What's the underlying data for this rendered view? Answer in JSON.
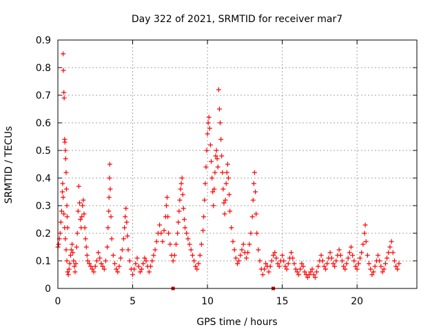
{
  "chart_data": {
    "type": "scatter",
    "title": "Day 322 of 2021, SRMTID for receiver mar7",
    "xlabel": "GPS time / hours",
    "ylabel": "SRMTID / TECUs",
    "xlim": [
      0,
      24
    ],
    "ylim": [
      0,
      0.9
    ],
    "x_ticks": [
      0,
      5,
      10,
      15,
      20
    ],
    "x_tick_labels": [
      "0",
      "5",
      "10",
      "15",
      "20"
    ],
    "y_ticks": [
      0,
      0.1,
      0.2,
      0.3,
      0.4,
      0.5,
      0.6,
      0.7,
      0.8,
      0.9
    ],
    "y_tick_labels": [
      "0",
      "0.1",
      "0.2",
      "0.3",
      "0.4",
      "0.5",
      "0.6",
      "0.7",
      "0.8",
      "0.9"
    ],
    "grid": true,
    "legend": "none",
    "marker": "plus",
    "colors": {
      "series": "#ff0000",
      "axis_markers": "#cc0000",
      "grid": "#a0a0a0"
    },
    "axis_markers_x": [
      7.7,
      14.4
    ],
    "series": [
      {
        "points": [
          [
            0.0,
            0.15
          ],
          [
            0.05,
            0.16
          ],
          [
            0.1,
            0.18
          ],
          [
            0.15,
            0.2
          ],
          [
            0.2,
            0.24
          ],
          [
            0.25,
            0.28
          ],
          [
            0.3,
            0.35
          ],
          [
            0.32,
            0.38
          ],
          [
            0.35,
            0.85
          ],
          [
            0.37,
            0.79
          ],
          [
            0.4,
            0.71
          ],
          [
            0.42,
            0.69
          ],
          [
            0.45,
            0.54
          ],
          [
            0.47,
            0.53
          ],
          [
            0.5,
            0.5
          ],
          [
            0.52,
            0.47
          ],
          [
            0.55,
            0.42
          ],
          [
            0.57,
            0.36
          ],
          [
            0.6,
            0.3
          ],
          [
            0.62,
            0.26
          ],
          [
            0.65,
            0.22
          ],
          [
            0.35,
            0.33
          ],
          [
            0.4,
            0.27
          ],
          [
            0.45,
            0.22
          ],
          [
            0.5,
            0.18
          ],
          [
            0.55,
            0.14
          ],
          [
            0.6,
            0.1
          ],
          [
            0.65,
            0.06
          ],
          [
            0.7,
            0.05
          ],
          [
            0.75,
            0.07
          ],
          [
            0.8,
            0.09
          ],
          [
            0.85,
            0.12
          ],
          [
            0.9,
            0.14
          ],
          [
            0.95,
            0.16
          ],
          [
            1.0,
            0.13
          ],
          [
            1.05,
            0.1
          ],
          [
            1.1,
            0.08
          ],
          [
            1.15,
            0.06
          ],
          [
            1.2,
            0.09
          ],
          [
            1.25,
            0.15
          ],
          [
            1.3,
            0.2
          ],
          [
            1.35,
            0.28
          ],
          [
            1.4,
            0.37
          ],
          [
            1.45,
            0.31
          ],
          [
            1.5,
            0.25
          ],
          [
            1.55,
            0.22
          ],
          [
            1.6,
            0.26
          ],
          [
            1.65,
            0.3
          ],
          [
            1.7,
            0.32
          ],
          [
            1.75,
            0.27
          ],
          [
            1.8,
            0.22
          ],
          [
            1.85,
            0.18
          ],
          [
            1.9,
            0.15
          ],
          [
            1.95,
            0.12
          ],
          [
            2.0,
            0.1
          ],
          [
            2.1,
            0.09
          ],
          [
            2.2,
            0.08
          ],
          [
            2.3,
            0.07
          ],
          [
            2.4,
            0.06
          ],
          [
            2.5,
            0.08
          ],
          [
            2.6,
            0.1
          ],
          [
            2.7,
            0.13
          ],
          [
            2.8,
            0.11
          ],
          [
            2.9,
            0.09
          ],
          [
            3.0,
            0.08
          ],
          [
            3.1,
            0.07
          ],
          [
            3.2,
            0.1
          ],
          [
            3.3,
            0.15
          ],
          [
            3.35,
            0.22
          ],
          [
            3.4,
            0.28
          ],
          [
            3.42,
            0.33
          ],
          [
            3.45,
            0.4
          ],
          [
            3.47,
            0.45
          ],
          [
            3.5,
            0.36
          ],
          [
            3.55,
            0.26
          ],
          [
            3.6,
            0.18
          ],
          [
            3.7,
            0.12
          ],
          [
            3.8,
            0.09
          ],
          [
            3.9,
            0.07
          ],
          [
            4.0,
            0.06
          ],
          [
            4.1,
            0.08
          ],
          [
            4.2,
            0.11
          ],
          [
            4.3,
            0.14
          ],
          [
            4.4,
            0.18
          ],
          [
            4.45,
            0.22
          ],
          [
            4.5,
            0.26
          ],
          [
            4.55,
            0.29
          ],
          [
            4.6,
            0.24
          ],
          [
            4.65,
            0.19
          ],
          [
            4.7,
            0.14
          ],
          [
            4.8,
            0.1
          ],
          [
            4.9,
            0.07
          ],
          [
            5.0,
            0.05
          ],
          [
            5.1,
            0.07
          ],
          [
            5.2,
            0.09
          ],
          [
            5.3,
            0.11
          ],
          [
            5.4,
            0.08
          ],
          [
            5.5,
            0.06
          ],
          [
            5.6,
            0.07
          ],
          [
            5.7,
            0.09
          ],
          [
            5.8,
            0.11
          ],
          [
            5.9,
            0.1
          ],
          [
            6.0,
            0.08
          ],
          [
            6.1,
            0.06
          ],
          [
            6.2,
            0.08
          ],
          [
            6.3,
            0.1
          ],
          [
            6.4,
            0.12
          ],
          [
            6.5,
            0.14
          ],
          [
            6.6,
            0.17
          ],
          [
            6.7,
            0.2
          ],
          [
            6.8,
            0.23
          ],
          [
            6.9,
            0.2
          ],
          [
            7.0,
            0.17
          ],
          [
            7.1,
            0.21
          ],
          [
            7.2,
            0.26
          ],
          [
            7.25,
            0.3
          ],
          [
            7.3,
            0.33
          ],
          [
            7.35,
            0.26
          ],
          [
            7.4,
            0.2
          ],
          [
            7.5,
            0.16
          ],
          [
            7.6,
            0.12
          ],
          [
            7.7,
            0.1
          ],
          [
            7.8,
            0.12
          ],
          [
            7.9,
            0.16
          ],
          [
            8.0,
            0.2
          ],
          [
            8.05,
            0.24
          ],
          [
            8.1,
            0.28
          ],
          [
            8.15,
            0.32
          ],
          [
            8.2,
            0.36
          ],
          [
            8.25,
            0.38
          ],
          [
            8.3,
            0.4
          ],
          [
            8.35,
            0.34
          ],
          [
            8.4,
            0.29
          ],
          [
            8.45,
            0.25
          ],
          [
            8.5,
            0.22
          ],
          [
            8.6,
            0.2
          ],
          [
            8.7,
            0.18
          ],
          [
            8.8,
            0.16
          ],
          [
            8.9,
            0.14
          ],
          [
            9.0,
            0.12
          ],
          [
            9.1,
            0.1
          ],
          [
            9.2,
            0.08
          ],
          [
            9.3,
            0.07
          ],
          [
            9.4,
            0.09
          ],
          [
            9.5,
            0.12
          ],
          [
            9.6,
            0.16
          ],
          [
            9.7,
            0.21
          ],
          [
            9.75,
            0.26
          ],
          [
            9.8,
            0.32
          ],
          [
            9.85,
            0.38
          ],
          [
            9.9,
            0.44
          ],
          [
            9.95,
            0.5
          ],
          [
            10.0,
            0.56
          ],
          [
            10.05,
            0.6
          ],
          [
            10.1,
            0.62
          ],
          [
            10.15,
            0.58
          ],
          [
            10.2,
            0.52
          ],
          [
            10.25,
            0.46
          ],
          [
            10.3,
            0.4
          ],
          [
            10.35,
            0.35
          ],
          [
            10.4,
            0.3
          ],
          [
            10.45,
            0.36
          ],
          [
            10.5,
            0.42
          ],
          [
            10.55,
            0.48
          ],
          [
            10.6,
            0.5
          ],
          [
            10.65,
            0.47
          ],
          [
            10.7,
            0.44
          ],
          [
            10.75,
            0.72
          ],
          [
            10.8,
            0.65
          ],
          [
            10.85,
            0.6
          ],
          [
            10.9,
            0.54
          ],
          [
            10.95,
            0.48
          ],
          [
            11.0,
            0.42
          ],
          [
            11.05,
            0.36
          ],
          [
            11.1,
            0.31
          ],
          [
            11.15,
            0.27
          ],
          [
            11.2,
            0.32
          ],
          [
            11.25,
            0.38
          ],
          [
            11.3,
            0.42
          ],
          [
            11.35,
            0.45
          ],
          [
            11.4,
            0.4
          ],
          [
            11.45,
            0.34
          ],
          [
            11.5,
            0.28
          ],
          [
            11.6,
            0.22
          ],
          [
            11.7,
            0.17
          ],
          [
            11.8,
            0.14
          ],
          [
            11.9,
            0.11
          ],
          [
            12.0,
            0.09
          ],
          [
            12.1,
            0.1
          ],
          [
            12.2,
            0.12
          ],
          [
            12.3,
            0.14
          ],
          [
            12.4,
            0.16
          ],
          [
            12.5,
            0.13
          ],
          [
            12.6,
            0.11
          ],
          [
            12.7,
            0.13
          ],
          [
            12.8,
            0.16
          ],
          [
            12.9,
            0.2
          ],
          [
            13.0,
            0.26
          ],
          [
            13.05,
            0.32
          ],
          [
            13.1,
            0.38
          ],
          [
            13.15,
            0.42
          ],
          [
            13.2,
            0.35
          ],
          [
            13.25,
            0.27
          ],
          [
            13.3,
            0.2
          ],
          [
            13.4,
            0.14
          ],
          [
            13.5,
            0.1
          ],
          [
            13.6,
            0.07
          ],
          [
            13.7,
            0.05
          ],
          [
            13.8,
            0.07
          ],
          [
            13.9,
            0.09
          ],
          [
            14.0,
            0.08
          ],
          [
            14.1,
            0.06
          ],
          [
            14.2,
            0.08
          ],
          [
            14.3,
            0.1
          ],
          [
            14.4,
            0.12
          ],
          [
            14.5,
            0.13
          ],
          [
            14.6,
            0.11
          ],
          [
            14.7,
            0.09
          ],
          [
            14.8,
            0.08
          ],
          [
            14.9,
            0.1
          ],
          [
            15.0,
            0.12
          ],
          [
            15.1,
            0.1
          ],
          [
            15.2,
            0.08
          ],
          [
            15.3,
            0.07
          ],
          [
            15.4,
            0.09
          ],
          [
            15.5,
            0.11
          ],
          [
            15.6,
            0.13
          ],
          [
            15.7,
            0.11
          ],
          [
            15.8,
            0.09
          ],
          [
            15.9,
            0.07
          ],
          [
            16.0,
            0.06
          ],
          [
            16.1,
            0.05
          ],
          [
            16.2,
            0.07
          ],
          [
            16.3,
            0.09
          ],
          [
            16.4,
            0.08
          ],
          [
            16.5,
            0.06
          ],
          [
            16.6,
            0.05
          ],
          [
            16.7,
            0.04
          ],
          [
            16.8,
            0.05
          ],
          [
            16.9,
            0.06
          ],
          [
            17.0,
            0.07
          ],
          [
            17.1,
            0.05
          ],
          [
            17.2,
            0.04
          ],
          [
            17.3,
            0.06
          ],
          [
            17.4,
            0.08
          ],
          [
            17.5,
            0.1
          ],
          [
            17.6,
            0.12
          ],
          [
            17.7,
            0.1
          ],
          [
            17.8,
            0.08
          ],
          [
            17.9,
            0.07
          ],
          [
            18.0,
            0.09
          ],
          [
            18.1,
            0.11
          ],
          [
            18.2,
            0.13
          ],
          [
            18.3,
            0.11
          ],
          [
            18.4,
            0.09
          ],
          [
            18.5,
            0.08
          ],
          [
            18.6,
            0.1
          ],
          [
            18.7,
            0.12
          ],
          [
            18.8,
            0.14
          ],
          [
            18.9,
            0.12
          ],
          [
            19.0,
            0.1
          ],
          [
            19.1,
            0.08
          ],
          [
            19.2,
            0.07
          ],
          [
            19.3,
            0.09
          ],
          [
            19.4,
            0.11
          ],
          [
            19.5,
            0.13
          ],
          [
            19.6,
            0.15
          ],
          [
            19.7,
            0.12
          ],
          [
            19.8,
            0.1
          ],
          [
            19.9,
            0.08
          ],
          [
            20.0,
            0.07
          ],
          [
            20.1,
            0.09
          ],
          [
            20.2,
            0.11
          ],
          [
            20.3,
            0.13
          ],
          [
            20.4,
            0.16
          ],
          [
            20.5,
            0.2
          ],
          [
            20.55,
            0.23
          ],
          [
            20.6,
            0.17
          ],
          [
            20.7,
            0.12
          ],
          [
            20.8,
            0.09
          ],
          [
            20.9,
            0.07
          ],
          [
            21.0,
            0.05
          ],
          [
            21.1,
            0.06
          ],
          [
            21.2,
            0.08
          ],
          [
            21.3,
            0.1
          ],
          [
            21.4,
            0.12
          ],
          [
            21.5,
            0.1
          ],
          [
            21.6,
            0.08
          ],
          [
            21.7,
            0.06
          ],
          [
            21.8,
            0.07
          ],
          [
            21.9,
            0.09
          ],
          [
            22.0,
            0.11
          ],
          [
            22.1,
            0.13
          ],
          [
            22.2,
            0.15
          ],
          [
            22.3,
            0.17
          ],
          [
            22.4,
            0.13
          ],
          [
            22.5,
            0.1
          ],
          [
            22.6,
            0.08
          ],
          [
            22.7,
            0.07
          ],
          [
            22.8,
            0.09
          ]
        ]
      }
    ]
  }
}
